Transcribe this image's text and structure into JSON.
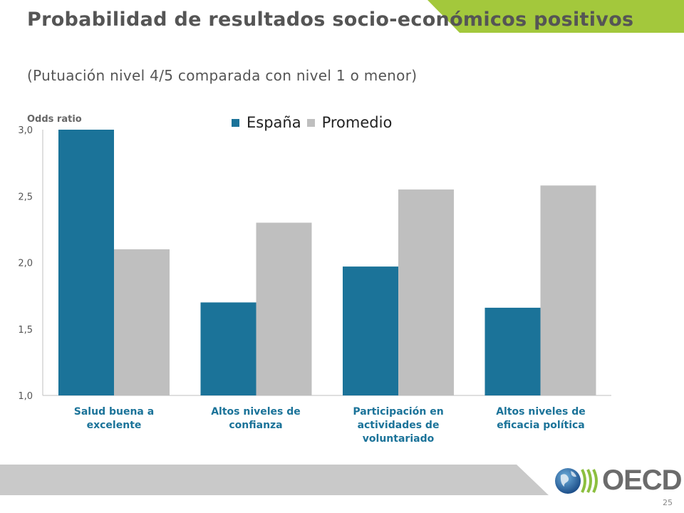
{
  "header": {
    "title": "Probabilidad de resultados socio-económicos positivos",
    "subtitle": "(Putuación nivel 4/5 comparada con nivel 1 o menor)",
    "accent_color": "#a3c83c"
  },
  "footer": {
    "page_number": "25",
    "logo_text": "OECD"
  },
  "chart_data": {
    "type": "bar",
    "ylabel": "Odds ratio",
    "ylim": [
      1.0,
      3.0
    ],
    "yticks": [
      "1,0",
      "1,5",
      "2,0",
      "2,5",
      "3,0"
    ],
    "categories": [
      "Salud buena a excelente",
      "Altos niveles de confianza",
      "Participación en actividades de voluntariado",
      "Altos niveles de eficacia política"
    ],
    "series": [
      {
        "name": "España",
        "color": "#1b7399",
        "values": [
          3.0,
          1.7,
          1.97,
          1.66
        ]
      },
      {
        "name": "Promedio",
        "color": "#bfbfbf",
        "values": [
          2.1,
          2.3,
          2.55,
          2.58
        ]
      }
    ],
    "legend_position": "top-center",
    "grid": false
  }
}
